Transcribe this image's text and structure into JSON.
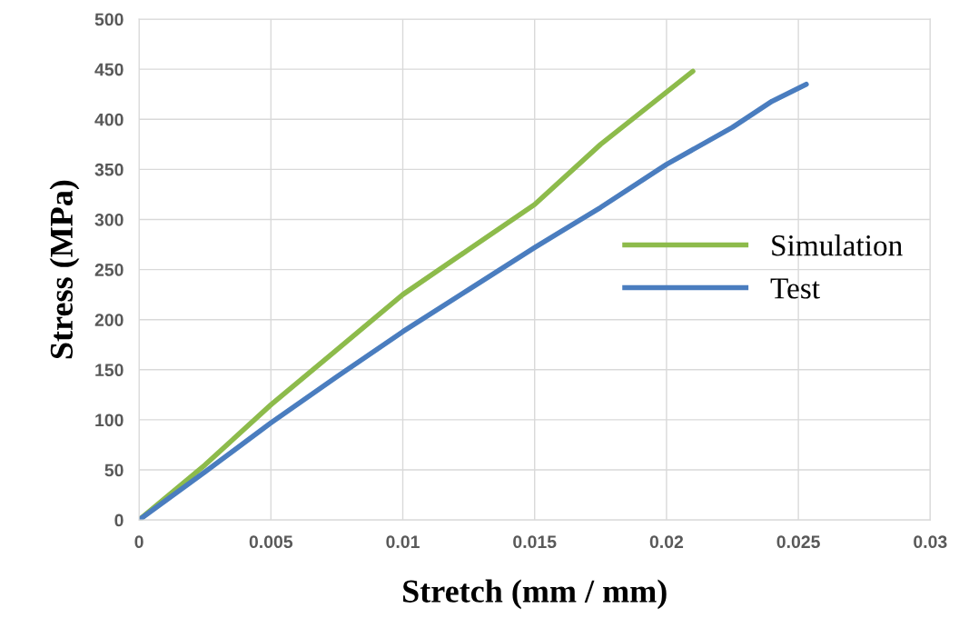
{
  "chart_data": {
    "type": "line",
    "xlabel": "Stretch (mm / mm)",
    "ylabel": "Stress (MPa)",
    "xlim": [
      0,
      0.03
    ],
    "xticks": [
      0,
      0.005,
      0.01,
      0.015,
      0.02,
      0.025,
      0.03
    ],
    "ylim": [
      0,
      500
    ],
    "yticks": [
      0,
      50,
      100,
      150,
      200,
      250,
      300,
      350,
      400,
      450,
      500
    ],
    "grid": true,
    "legend": "right",
    "marker": "none",
    "line_style": "solid",
    "series": [
      {
        "name": "Simulation",
        "color": "#8dbb4b",
        "x": [
          0,
          0.0025,
          0.005,
          0.0075,
          0.01,
          0.0125,
          0.015,
          0.0175,
          0.021
        ],
        "values": [
          0,
          55,
          115,
          170,
          225,
          270,
          315,
          375,
          448
        ]
      },
      {
        "name": "Test",
        "color": "#4a7dbf",
        "x": [
          0,
          0.0025,
          0.005,
          0.0075,
          0.01,
          0.0125,
          0.015,
          0.0175,
          0.02,
          0.0225,
          0.024,
          0.0253
        ],
        "values": [
          0,
          48,
          97,
          143,
          188,
          230,
          272,
          312,
          355,
          392,
          418,
          435
        ]
      }
    ]
  }
}
